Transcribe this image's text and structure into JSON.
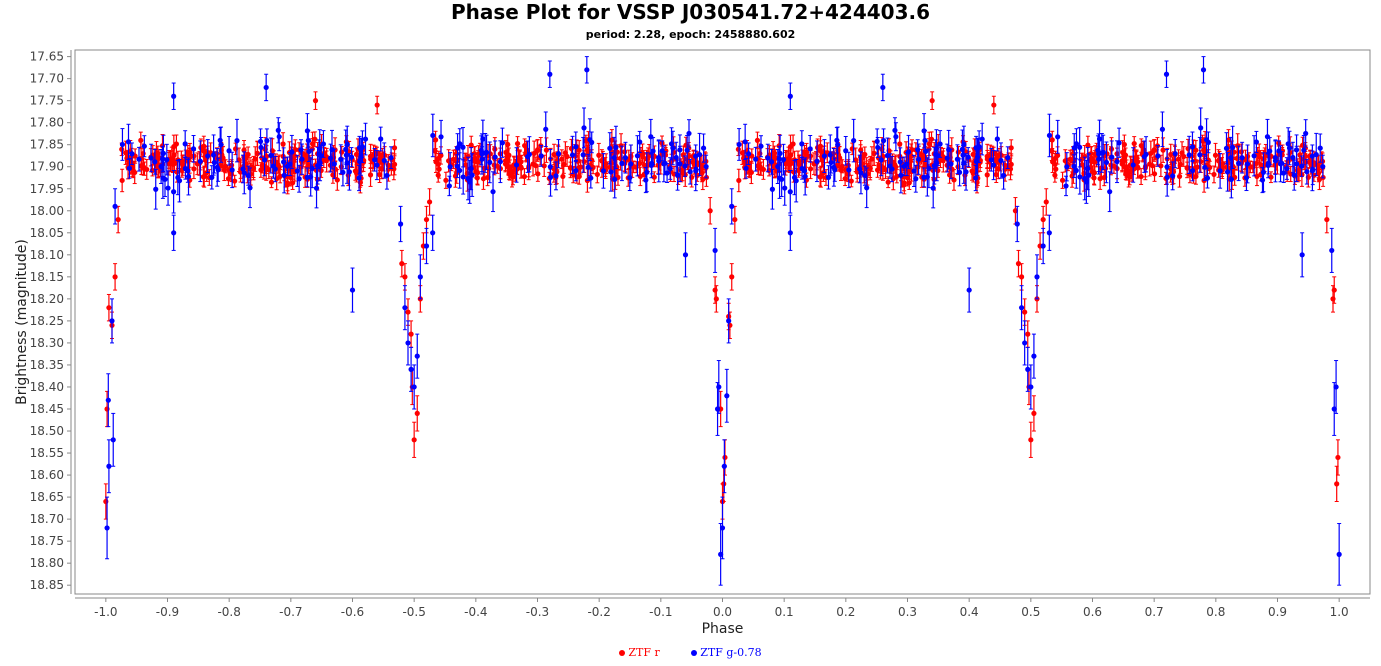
{
  "chart_data": {
    "type": "scatter",
    "title": "Phase Plot for VSSP J030541.72+424403.6",
    "subtitle": "period: 2.28, epoch: 2458880.602",
    "xlabel": "Phase",
    "ylabel": "Brightness (magnitude)",
    "xlim": [
      -1.05,
      1.05
    ],
    "ylim": [
      18.87,
      17.635
    ],
    "y_inverted": true,
    "x_ticks": [
      "-1.0",
      "-0.9",
      "-0.8",
      "-0.7",
      "-0.6",
      "-0.5",
      "-0.4",
      "-0.3",
      "-0.2",
      "-0.1",
      "0.0",
      "0.1",
      "0.2",
      "0.3",
      "0.4",
      "0.5",
      "0.6",
      "0.7",
      "0.8",
      "0.9",
      "1.0"
    ],
    "y_ticks": [
      "17.65",
      "17.70",
      "17.75",
      "17.80",
      "17.85",
      "17.90",
      "17.95",
      "18.00",
      "18.05",
      "18.10",
      "18.15",
      "18.20",
      "18.25",
      "18.30",
      "18.35",
      "18.40",
      "18.45",
      "18.50",
      "18.55",
      "18.60",
      "18.65",
      "18.70",
      "18.75",
      "18.80",
      "18.85"
    ],
    "grid": false,
    "legend_position": "bottom",
    "series": [
      {
        "name": "ZTF r",
        "color": "#ff0000",
        "baseline": 17.89,
        "scatter": 0.035,
        "err": 0.02,
        "points": [
          {
            "x": 0.0,
            "y": 18.66,
            "err": 0.04
          },
          {
            "x": 0.002,
            "y": 18.62,
            "err": 0.04
          },
          {
            "x": 0.004,
            "y": 18.56,
            "err": 0.04
          },
          {
            "x": -0.003,
            "y": 18.45,
            "err": 0.04
          },
          {
            "x": 0.012,
            "y": 18.26,
            "err": 0.03
          },
          {
            "x": 0.01,
            "y": 18.24,
            "err": 0.03
          },
          {
            "x": 0.015,
            "y": 18.15,
            "err": 0.03
          },
          {
            "x": -0.01,
            "y": 18.2,
            "err": 0.03
          },
          {
            "x": -0.012,
            "y": 18.18,
            "err": 0.03
          },
          {
            "x": 0.02,
            "y": 18.02,
            "err": 0.03
          },
          {
            "x": -0.02,
            "y": 18.0,
            "err": 0.03
          },
          {
            "x": 0.5,
            "y": 18.52,
            "err": 0.04
          },
          {
            "x": 0.505,
            "y": 18.46,
            "err": 0.04
          },
          {
            "x": 0.497,
            "y": 18.4,
            "err": 0.04
          },
          {
            "x": 0.49,
            "y": 18.23,
            "err": 0.03
          },
          {
            "x": 0.495,
            "y": 18.28,
            "err": 0.03
          },
          {
            "x": 0.51,
            "y": 18.2,
            "err": 0.03
          },
          {
            "x": 0.485,
            "y": 18.15,
            "err": 0.03
          },
          {
            "x": 0.515,
            "y": 18.08,
            "err": 0.03
          },
          {
            "x": 0.48,
            "y": 18.12,
            "err": 0.03
          },
          {
            "x": 0.52,
            "y": 18.02,
            "err": 0.03
          },
          {
            "x": 0.525,
            "y": 17.98,
            "err": 0.03
          },
          {
            "x": 0.475,
            "y": 18.0,
            "err": 0.03
          },
          {
            "x": -0.5,
            "y": 18.52,
            "err": 0.04
          },
          {
            "x": -0.495,
            "y": 18.46,
            "err": 0.04
          },
          {
            "x": -0.503,
            "y": 18.4,
            "err": 0.04
          },
          {
            "x": -0.51,
            "y": 18.23,
            "err": 0.03
          },
          {
            "x": -0.505,
            "y": 18.28,
            "err": 0.03
          },
          {
            "x": -0.49,
            "y": 18.2,
            "err": 0.03
          },
          {
            "x": -0.515,
            "y": 18.15,
            "err": 0.03
          },
          {
            "x": -0.485,
            "y": 18.08,
            "err": 0.03
          },
          {
            "x": -0.52,
            "y": 18.12,
            "err": 0.03
          },
          {
            "x": -0.48,
            "y": 18.02,
            "err": 0.03
          },
          {
            "x": -0.475,
            "y": 17.98,
            "err": 0.03
          },
          {
            "x": -1.0,
            "y": 18.66,
            "err": 0.04
          },
          {
            "x": -0.998,
            "y": 18.45,
            "err": 0.04
          },
          {
            "x": -0.99,
            "y": 18.26,
            "err": 0.03
          },
          {
            "x": -0.985,
            "y": 18.15,
            "err": 0.03
          },
          {
            "x": -0.98,
            "y": 18.02,
            "err": 0.03
          },
          {
            "x": -0.995,
            "y": 18.22,
            "err": 0.03
          },
          {
            "x": 0.99,
            "y": 18.2,
            "err": 0.03
          },
          {
            "x": 0.992,
            "y": 18.18,
            "err": 0.03
          },
          {
            "x": 0.996,
            "y": 18.62,
            "err": 0.04
          },
          {
            "x": 0.998,
            "y": 18.56,
            "err": 0.04
          },
          {
            "x": 0.98,
            "y": 18.02,
            "err": 0.03
          },
          {
            "x": -0.66,
            "y": 17.75,
            "err": 0.02
          },
          {
            "x": -0.56,
            "y": 17.76,
            "err": 0.02
          },
          {
            "x": 0.34,
            "y": 17.75,
            "err": 0.02
          },
          {
            "x": 0.44,
            "y": 17.76,
            "err": 0.02
          }
        ]
      },
      {
        "name": "ZTF g-0.78",
        "color": "#0000ff",
        "baseline": 17.88,
        "scatter": 0.055,
        "err": 0.035,
        "points": [
          {
            "x": -0.003,
            "y": 18.78,
            "err": 0.07
          },
          {
            "x": 0.0,
            "y": 18.72,
            "err": 0.07
          },
          {
            "x": 0.003,
            "y": 18.58,
            "err": 0.06
          },
          {
            "x": -0.008,
            "y": 18.45,
            "err": 0.06
          },
          {
            "x": 0.007,
            "y": 18.42,
            "err": 0.06
          },
          {
            "x": -0.006,
            "y": 18.4,
            "err": 0.06
          },
          {
            "x": 0.01,
            "y": 18.25,
            "err": 0.05
          },
          {
            "x": -0.012,
            "y": 18.09,
            "err": 0.05
          },
          {
            "x": 0.015,
            "y": 17.99,
            "err": 0.04
          },
          {
            "x": -0.998,
            "y": 18.72,
            "err": 0.07
          },
          {
            "x": -0.995,
            "y": 18.58,
            "err": 0.06
          },
          {
            "x": -0.996,
            "y": 18.43,
            "err": 0.06
          },
          {
            "x": -0.99,
            "y": 18.25,
            "err": 0.05
          },
          {
            "x": -0.988,
            "y": 18.52,
            "err": 0.06
          },
          {
            "x": -0.985,
            "y": 17.99,
            "err": 0.04
          },
          {
            "x": 1.0,
            "y": 18.78,
            "err": 0.07
          },
          {
            "x": 0.995,
            "y": 18.4,
            "err": 0.06
          },
          {
            "x": 0.992,
            "y": 18.45,
            "err": 0.06
          },
          {
            "x": 0.988,
            "y": 18.09,
            "err": 0.05
          },
          {
            "x": 0.5,
            "y": 18.4,
            "err": 0.05
          },
          {
            "x": 0.495,
            "y": 18.36,
            "err": 0.05
          },
          {
            "x": 0.49,
            "y": 18.3,
            "err": 0.05
          },
          {
            "x": 0.505,
            "y": 18.33,
            "err": 0.05
          },
          {
            "x": 0.51,
            "y": 18.15,
            "err": 0.05
          },
          {
            "x": 0.485,
            "y": 18.22,
            "err": 0.05
          },
          {
            "x": 0.52,
            "y": 18.08,
            "err": 0.04
          },
          {
            "x": 0.478,
            "y": 18.03,
            "err": 0.04
          },
          {
            "x": 0.53,
            "y": 18.05,
            "err": 0.04
          },
          {
            "x": -0.5,
            "y": 18.4,
            "err": 0.05
          },
          {
            "x": -0.505,
            "y": 18.36,
            "err": 0.05
          },
          {
            "x": -0.51,
            "y": 18.3,
            "err": 0.05
          },
          {
            "x": -0.495,
            "y": 18.33,
            "err": 0.05
          },
          {
            "x": -0.49,
            "y": 18.15,
            "err": 0.05
          },
          {
            "x": -0.515,
            "y": 18.22,
            "err": 0.05
          },
          {
            "x": -0.48,
            "y": 18.08,
            "err": 0.04
          },
          {
            "x": -0.522,
            "y": 18.03,
            "err": 0.04
          },
          {
            "x": -0.47,
            "y": 18.05,
            "err": 0.04
          },
          {
            "x": -0.6,
            "y": 18.18,
            "err": 0.05
          },
          {
            "x": 0.4,
            "y": 18.18,
            "err": 0.05
          },
          {
            "x": -0.06,
            "y": 18.1,
            "err": 0.05
          },
          {
            "x": 0.94,
            "y": 18.1,
            "err": 0.05
          },
          {
            "x": -0.28,
            "y": 17.69,
            "err": 0.03
          },
          {
            "x": -0.22,
            "y": 17.68,
            "err": 0.03
          },
          {
            "x": 0.72,
            "y": 17.69,
            "err": 0.03
          },
          {
            "x": 0.78,
            "y": 17.68,
            "err": 0.03
          },
          {
            "x": -0.74,
            "y": 17.72,
            "err": 0.03
          },
          {
            "x": 0.26,
            "y": 17.72,
            "err": 0.03
          },
          {
            "x": -0.89,
            "y": 17.74,
            "err": 0.03
          },
          {
            "x": 0.11,
            "y": 17.74,
            "err": 0.03
          },
          {
            "x": -0.89,
            "y": 18.05,
            "err": 0.04
          },
          {
            "x": 0.11,
            "y": 18.05,
            "err": 0.04
          }
        ]
      }
    ]
  }
}
